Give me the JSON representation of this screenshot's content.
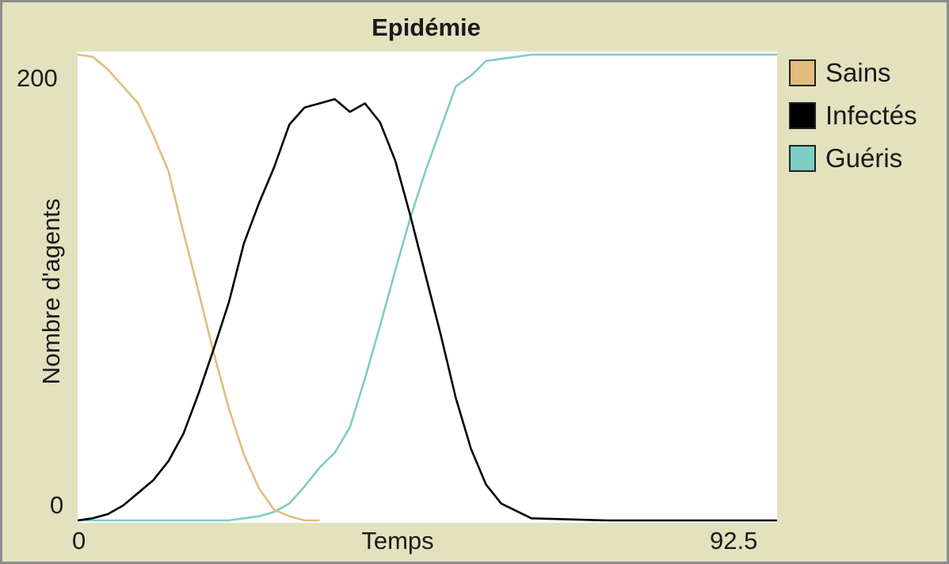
{
  "window": {
    "title": "Epidémie"
  },
  "chart_data": {
    "type": "line",
    "title": "Epidémie",
    "xlabel": "Temps",
    "ylabel": "Nombre d'agents",
    "xlim": [
      0,
      92.5
    ],
    "ylim": [
      0,
      220
    ],
    "x_ticks": [
      "0",
      "92.5"
    ],
    "y_ticks": [
      "200",
      "0"
    ],
    "grid": false,
    "legend_position": "right",
    "series": [
      {
        "name": "Sains",
        "color": "#e2bc7e",
        "x": [
          0,
          2,
          4,
          6,
          8,
          10,
          12,
          14,
          16,
          18,
          20,
          22,
          24,
          26,
          28,
          30,
          32
        ],
        "y": [
          220,
          219,
          213,
          205,
          197,
          182,
          165,
          136,
          108,
          79,
          53,
          31,
          15,
          5,
          2,
          0,
          0
        ]
      },
      {
        "name": "Infectés",
        "color": "#000000",
        "x": [
          0,
          2,
          4,
          6,
          8,
          10,
          12,
          14,
          16,
          18,
          20,
          22,
          24,
          26,
          28,
          30,
          32,
          34,
          36,
          38,
          40,
          42,
          44,
          46,
          48,
          50,
          52,
          54,
          56,
          60,
          70,
          80,
          92.5
        ],
        "y": [
          0,
          1,
          3,
          7,
          13,
          19,
          28,
          41,
          60,
          81,
          103,
          131,
          150,
          167,
          187,
          195,
          197,
          199,
          193,
          197,
          188,
          170,
          144,
          116,
          88,
          58,
          34,
          17,
          8,
          1,
          0,
          0,
          0
        ]
      },
      {
        "name": "Guéris",
        "color": "#7ecdc4",
        "x": [
          0,
          10,
          20,
          22,
          24,
          26,
          28,
          30,
          32,
          34,
          36,
          38,
          40,
          42,
          44,
          46,
          48,
          50,
          52,
          54,
          56,
          58,
          60,
          62,
          64,
          66,
          70,
          80,
          92.5
        ],
        "y": [
          0,
          0,
          0,
          1,
          2,
          4,
          8,
          16,
          25,
          32,
          44,
          67,
          92,
          118,
          143,
          165,
          185,
          205,
          210,
          217,
          218,
          219,
          220,
          220,
          220,
          220,
          220,
          220,
          220
        ]
      }
    ]
  }
}
